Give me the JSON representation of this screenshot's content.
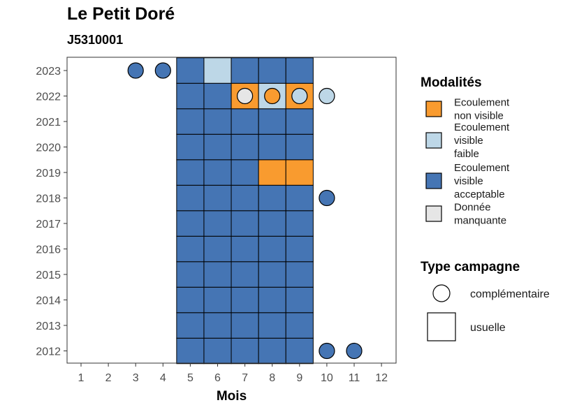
{
  "title": "Le Petit Doré",
  "subtitle": "J5310001",
  "chart_data": {
    "type": "heatmap",
    "xlabel": "Mois",
    "x_ticks": [
      1,
      2,
      3,
      4,
      5,
      6,
      7,
      8,
      9,
      10,
      11,
      12
    ],
    "y_ticks": [
      2012,
      2013,
      2014,
      2015,
      2016,
      2017,
      2018,
      2019,
      2020,
      2021,
      2022,
      2023
    ],
    "grid": false,
    "legend_placement": "right",
    "colors": {
      "non_visible": "#F99B2F",
      "faible": "#BDD7E7",
      "acceptable": "#4575B4",
      "manquante": "#E6E6E6"
    },
    "modalites": {
      "title": "Modalités",
      "items": [
        {
          "key": "non_visible",
          "lines": [
            "Ecoulement",
            "non visible"
          ]
        },
        {
          "key": "faible",
          "lines": [
            "Ecoulement",
            "visible",
            "faible"
          ]
        },
        {
          "key": "acceptable",
          "lines": [
            "Ecoulement",
            "visible",
            "acceptable"
          ]
        },
        {
          "key": "manquante",
          "lines": [
            "Donnée",
            "manquante"
          ]
        }
      ]
    },
    "type_campagne": {
      "title": "Type campagne",
      "items": [
        {
          "key": "complementaire",
          "label": "complémentaire",
          "shape": "circle"
        },
        {
          "key": "usuelle",
          "label": "usuelle",
          "shape": "square"
        }
      ]
    },
    "usuelle": [
      {
        "year": 2012,
        "months": [
          5,
          6,
          7,
          8,
          9
        ],
        "values": [
          "acceptable",
          "acceptable",
          "acceptable",
          "acceptable",
          "acceptable"
        ]
      },
      {
        "year": 2013,
        "months": [
          5,
          6,
          7,
          8,
          9
        ],
        "values": [
          "acceptable",
          "acceptable",
          "acceptable",
          "acceptable",
          "acceptable"
        ]
      },
      {
        "year": 2014,
        "months": [
          5,
          6,
          7,
          8,
          9
        ],
        "values": [
          "acceptable",
          "acceptable",
          "acceptable",
          "acceptable",
          "acceptable"
        ]
      },
      {
        "year": 2015,
        "months": [
          5,
          6,
          7,
          8,
          9
        ],
        "values": [
          "acceptable",
          "acceptable",
          "acceptable",
          "acceptable",
          "acceptable"
        ]
      },
      {
        "year": 2016,
        "months": [
          5,
          6,
          7,
          8,
          9
        ],
        "values": [
          "acceptable",
          "acceptable",
          "acceptable",
          "acceptable",
          "acceptable"
        ]
      },
      {
        "year": 2017,
        "months": [
          5,
          6,
          7,
          8,
          9
        ],
        "values": [
          "acceptable",
          "acceptable",
          "acceptable",
          "acceptable",
          "acceptable"
        ]
      },
      {
        "year": 2018,
        "months": [
          5,
          6,
          7,
          8,
          9
        ],
        "values": [
          "acceptable",
          "acceptable",
          "acceptable",
          "acceptable",
          "acceptable"
        ]
      },
      {
        "year": 2019,
        "months": [
          5,
          6,
          7,
          8,
          9
        ],
        "values": [
          "acceptable",
          "acceptable",
          "acceptable",
          "non_visible",
          "non_visible"
        ]
      },
      {
        "year": 2020,
        "months": [
          5,
          6,
          7,
          8,
          9
        ],
        "values": [
          "acceptable",
          "acceptable",
          "acceptable",
          "acceptable",
          "acceptable"
        ]
      },
      {
        "year": 2021,
        "months": [
          5,
          6,
          7,
          8,
          9
        ],
        "values": [
          "acceptable",
          "acceptable",
          "acceptable",
          "acceptable",
          "acceptable"
        ]
      },
      {
        "year": 2022,
        "months": [
          5,
          6,
          7,
          8,
          9
        ],
        "values": [
          "acceptable",
          "acceptable",
          "non_visible",
          "faible",
          "non_visible"
        ]
      },
      {
        "year": 2023,
        "months": [
          5,
          6,
          7,
          8,
          9
        ],
        "values": [
          "acceptable",
          "faible",
          "acceptable",
          "acceptable",
          "acceptable"
        ]
      }
    ],
    "complementaire": [
      {
        "year": 2023,
        "month": 3,
        "value": "acceptable"
      },
      {
        "year": 2023,
        "month": 4,
        "value": "acceptable"
      },
      {
        "year": 2022,
        "month": 7,
        "value": "manquante"
      },
      {
        "year": 2022,
        "month": 8,
        "value": "non_visible"
      },
      {
        "year": 2022,
        "month": 9,
        "value": "faible"
      },
      {
        "year": 2022,
        "month": 10,
        "value": "faible"
      },
      {
        "year": 2018,
        "month": 10,
        "value": "acceptable"
      },
      {
        "year": 2012,
        "month": 10,
        "value": "acceptable"
      },
      {
        "year": 2012,
        "month": 11,
        "value": "acceptable"
      }
    ]
  }
}
